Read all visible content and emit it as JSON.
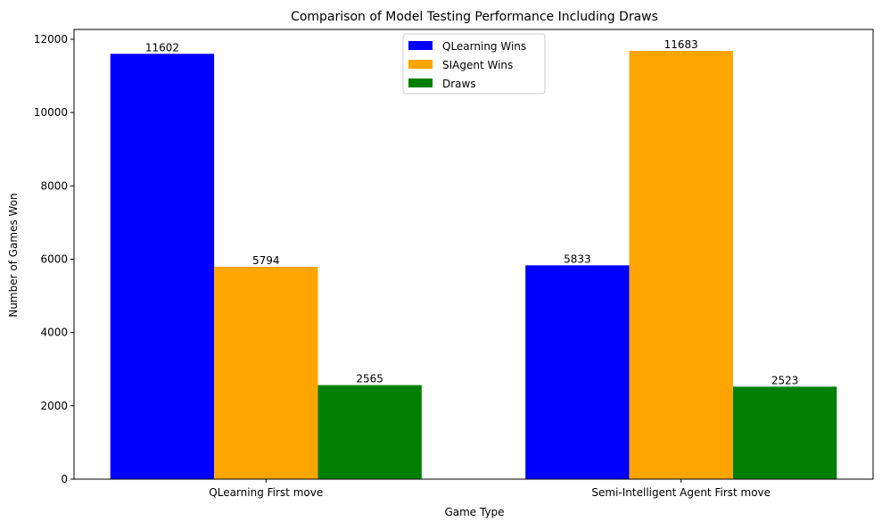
{
  "chart_data": {
    "type": "bar",
    "title": "Comparison of Model Testing Performance Including Draws",
    "xlabel": "Game Type",
    "ylabel": "Number of Games Won",
    "categories": [
      "QLearning First move",
      "Semi-Intelligent Agent First move"
    ],
    "series": [
      {
        "name": "QLearning Wins",
        "color": "#0000ff",
        "values": [
          11602,
          5833
        ]
      },
      {
        "name": "SIAgent Wins",
        "color": "#ffa500",
        "values": [
          5794,
          11683
        ]
      },
      {
        "name": "Draws",
        "color": "#008000",
        "values": [
          2565,
          2523
        ]
      }
    ],
    "yticks": [
      0,
      2000,
      4000,
      6000,
      8000,
      10000,
      12000
    ],
    "ylim": [
      0,
      12267
    ],
    "grid": false,
    "legend_position": "top-center",
    "data_labels": true
  }
}
